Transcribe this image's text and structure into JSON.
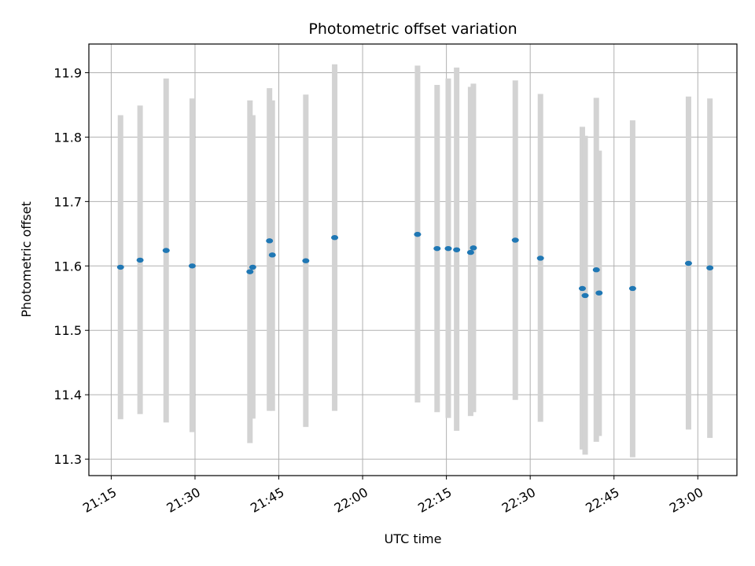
{
  "chart_data": {
    "type": "scatter",
    "title": "Photometric offset variation",
    "xlabel": "UTC time",
    "ylabel": "Photometric offset",
    "x_unit": "UTC time (HH:MM)",
    "xlim": [
      "21:11:00",
      "23:07:00"
    ],
    "ylim": [
      11.2745,
      11.9445
    ],
    "x_ticks": [
      "21:15",
      "21:30",
      "21:45",
      "22:00",
      "22:15",
      "22:30",
      "22:45",
      "23:00"
    ],
    "y_ticks": [
      "11.3",
      "11.4",
      "11.5",
      "11.6",
      "11.7",
      "11.8",
      "11.9"
    ],
    "grid": true,
    "colors": {
      "marker": "#1f77b4",
      "errorbar": "#d3d3d3",
      "grid": "#b0b0b0"
    },
    "series": [
      {
        "points": [
          {
            "x": "21:16:40",
            "y": 11.598,
            "ymin": 11.362,
            "ymax": 11.834
          },
          {
            "x": "21:20:10",
            "y": 11.609,
            "ymin": 11.37,
            "ymax": 11.849
          },
          {
            "x": "21:24:50",
            "y": 11.624,
            "ymin": 11.357,
            "ymax": 11.891
          },
          {
            "x": "21:29:30",
            "y": 11.6,
            "ymin": 11.342,
            "ymax": 11.86
          },
          {
            "x": "21:39:50",
            "y": 11.591,
            "ymin": 11.325,
            "ymax": 11.857
          },
          {
            "x": "21:40:20",
            "y": 11.598,
            "ymin": 11.363,
            "ymax": 11.834
          },
          {
            "x": "21:43:20",
            "y": 11.639,
            "ymin": 11.375,
            "ymax": 11.876
          },
          {
            "x": "21:43:50",
            "y": 11.617,
            "ymin": 11.375,
            "ymax": 11.857
          },
          {
            "x": "21:49:50",
            "y": 11.608,
            "ymin": 11.35,
            "ymax": 11.866
          },
          {
            "x": "21:55:00",
            "y": 11.644,
            "ymin": 11.375,
            "ymax": 11.913
          },
          {
            "x": "22:09:50",
            "y": 11.649,
            "ymin": 11.388,
            "ymax": 11.911
          },
          {
            "x": "22:13:20",
            "y": 11.627,
            "ymin": 11.373,
            "ymax": 11.881
          },
          {
            "x": "22:15:20",
            "y": 11.627,
            "ymin": 11.364,
            "ymax": 11.891
          },
          {
            "x": "22:16:50",
            "y": 11.625,
            "ymin": 11.344,
            "ymax": 11.908
          },
          {
            "x": "22:19:20",
            "y": 11.621,
            "ymin": 11.367,
            "ymax": 11.878
          },
          {
            "x": "22:19:50",
            "y": 11.628,
            "ymin": 11.373,
            "ymax": 11.883
          },
          {
            "x": "22:27:20",
            "y": 11.64,
            "ymin": 11.392,
            "ymax": 11.888
          },
          {
            "x": "22:31:50",
            "y": 11.612,
            "ymin": 11.358,
            "ymax": 11.867
          },
          {
            "x": "22:39:20",
            "y": 11.565,
            "ymin": 11.315,
            "ymax": 11.816
          },
          {
            "x": "22:39:50",
            "y": 11.554,
            "ymin": 11.307,
            "ymax": 11.802
          },
          {
            "x": "22:41:50",
            "y": 11.594,
            "ymin": 11.327,
            "ymax": 11.861
          },
          {
            "x": "22:42:20",
            "y": 11.558,
            "ymin": 11.336,
            "ymax": 11.779
          },
          {
            "x": "22:48:20",
            "y": 11.565,
            "ymin": 11.303,
            "ymax": 11.826
          },
          {
            "x": "22:58:20",
            "y": 11.604,
            "ymin": 11.346,
            "ymax": 11.863
          },
          {
            "x": "23:02:10",
            "y": 11.597,
            "ymin": 11.333,
            "ymax": 11.86
          }
        ]
      }
    ]
  }
}
